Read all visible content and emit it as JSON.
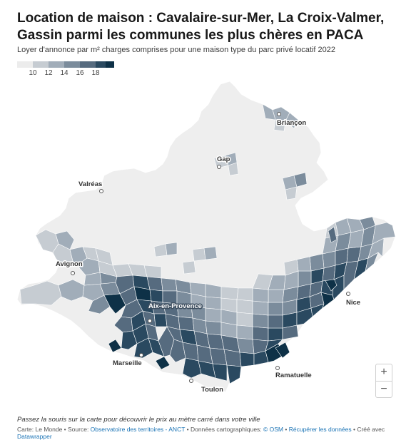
{
  "title": "Location de maison : Cavalaire-sur-Mer, La Croix-Valmer, Gassin parmi les communes les plus chères en PACA",
  "subtitle": "Loyer d'annonce par m² charges comprises pour une maison type du parc privé locatif 2022",
  "legend": {
    "colors": [
      "#ececec",
      "#c6ccd2",
      "#a1adb9",
      "#7b8c9c",
      "#566b7f",
      "#2a4960",
      "#0e3147"
    ],
    "ticks": [
      "10",
      "12",
      "14",
      "16",
      "18"
    ]
  },
  "map": {
    "region_fill": "#eeeeee",
    "cities": [
      {
        "name": "Briançon",
        "style": "dark"
      },
      {
        "name": "Gap",
        "style": "dark"
      },
      {
        "name": "Valréas",
        "style": "dark"
      },
      {
        "name": "Avignon",
        "style": "dark"
      },
      {
        "name": "Aix-en-Provence",
        "style": "light"
      },
      {
        "name": "Marseille",
        "style": "dark"
      },
      {
        "name": "Toulon",
        "style": "dark"
      },
      {
        "name": "Ramatuelle",
        "style": "dark"
      },
      {
        "name": "Nice",
        "style": "dark"
      }
    ]
  },
  "zoom": {
    "in": "+",
    "out": "−"
  },
  "hint": "Passez la souris sur la carte pour découvrir le prix au mètre carré dans votre ville",
  "footer": {
    "credit_prefix": "Carte: Le Monde • Source: ",
    "source_link": "Observatoire des territoires - ANCT",
    "cartography_prefix": " • Données cartographiques: ",
    "osm_link": "© OSM",
    "separator": " • ",
    "download_link": "Récupérer les données",
    "created_prefix": " • Créé avec ",
    "tool_link": "Datawrapper"
  }
}
